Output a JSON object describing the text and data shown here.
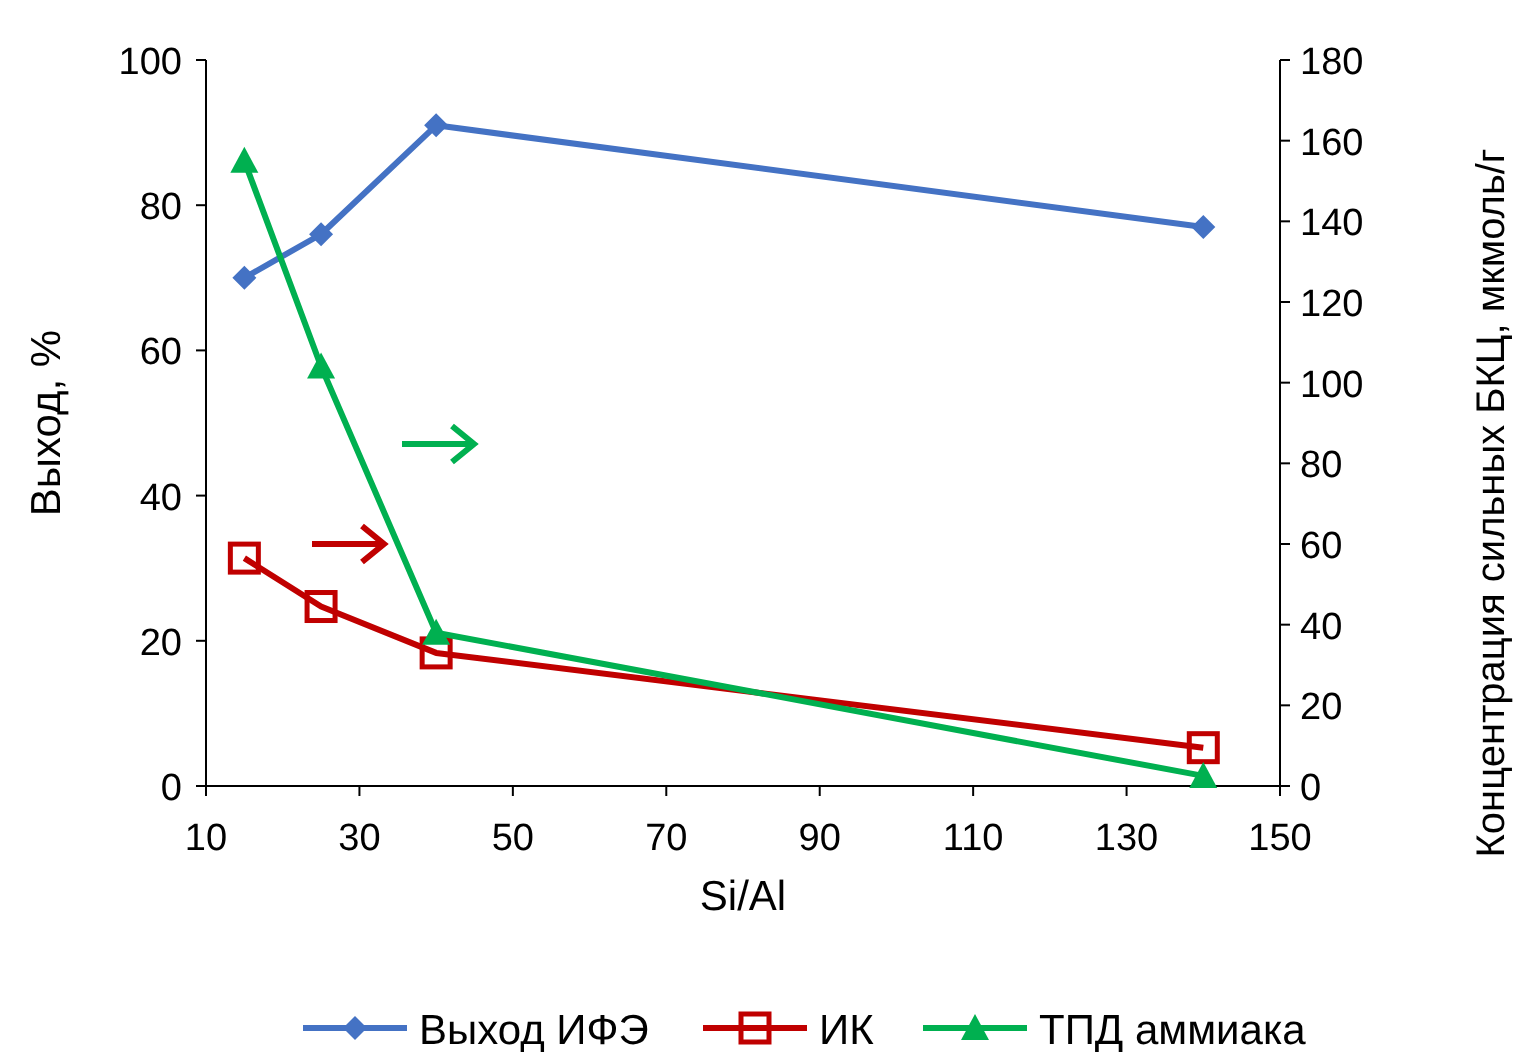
{
  "chart_data": {
    "type": "line",
    "xlabel": "Si/Al",
    "ylabel": "Выход, %",
    "y2label": "Концентрация  сильных БКЦ, мкмоль/г",
    "x": [
      15,
      25,
      40,
      140
    ],
    "xlim": [
      10,
      150
    ],
    "xticks": [
      10,
      30,
      50,
      70,
      90,
      110,
      130,
      150
    ],
    "ylim": [
      0,
      100
    ],
    "yticks": [
      0,
      20,
      40,
      60,
      80,
      100
    ],
    "y2lim": [
      0,
      180
    ],
    "y2ticks": [
      0,
      20,
      40,
      60,
      80,
      100,
      120,
      140,
      160,
      180
    ],
    "grid": false,
    "legend": "bottom",
    "series": [
      {
        "name": "Выход ИФЭ",
        "color": "#4472c4",
        "marker": "diamond",
        "values": [
          70,
          76,
          91,
          77
        ]
      },
      {
        "name": "ИК",
        "color": "#c00000",
        "marker": "square",
        "axis": "y2",
        "values": [
          56.5,
          44.5,
          33,
          9.5
        ]
      },
      {
        "name": "ТПД аммиака",
        "color": "#00b050",
        "marker": "triangle",
        "axis": "y2",
        "values": [
          155,
          104,
          38,
          2.5
        ]
      }
    ]
  }
}
